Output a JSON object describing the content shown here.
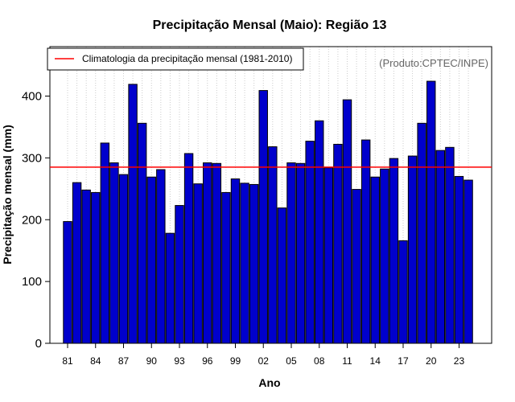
{
  "chart_data": {
    "type": "bar",
    "title": "Precipitação Mensal (Maio): Região 13",
    "xlabel": "Ano",
    "ylabel": "Precipitação mensal (mm)",
    "ylim": [
      0,
      480
    ],
    "yticks": [
      0,
      100,
      200,
      300,
      400
    ],
    "xtick_labels": [
      "81",
      "84",
      "87",
      "90",
      "93",
      "96",
      "99",
      "02",
      "05",
      "08",
      "11",
      "14",
      "17",
      "20",
      "23"
    ],
    "xtick_step": 3,
    "grid": "vertical dotted per year",
    "categories": [
      1981,
      1982,
      1983,
      1984,
      1985,
      1986,
      1987,
      1988,
      1989,
      1990,
      1991,
      1992,
      1993,
      1994,
      1995,
      1996,
      1997,
      1998,
      1999,
      2000,
      2001,
      2002,
      2003,
      2004,
      2005,
      2006,
      2007,
      2008,
      2009,
      2010,
      2011,
      2012,
      2013,
      2014,
      2015,
      2016,
      2017,
      2018,
      2019,
      2020,
      2021,
      2022,
      2023,
      2024
    ],
    "values": [
      197,
      260,
      248,
      244,
      324,
      292,
      273,
      419,
      356,
      269,
      281,
      178,
      223,
      307,
      258,
      292,
      291,
      244,
      266,
      259,
      257,
      409,
      318,
      219,
      292,
      291,
      327,
      360,
      284,
      322,
      394,
      249,
      329,
      269,
      282,
      299,
      166,
      303,
      356,
      424,
      312,
      317,
      270,
      264
    ],
    "bar_color": "#0000CC",
    "climatology": {
      "label": "Climatologia da precipitação mensal (1981-2010)",
      "value": 285,
      "color": "#FF0000"
    },
    "legend_position": "top-left",
    "source": "(Produto:CPTEC/INPE)"
  }
}
